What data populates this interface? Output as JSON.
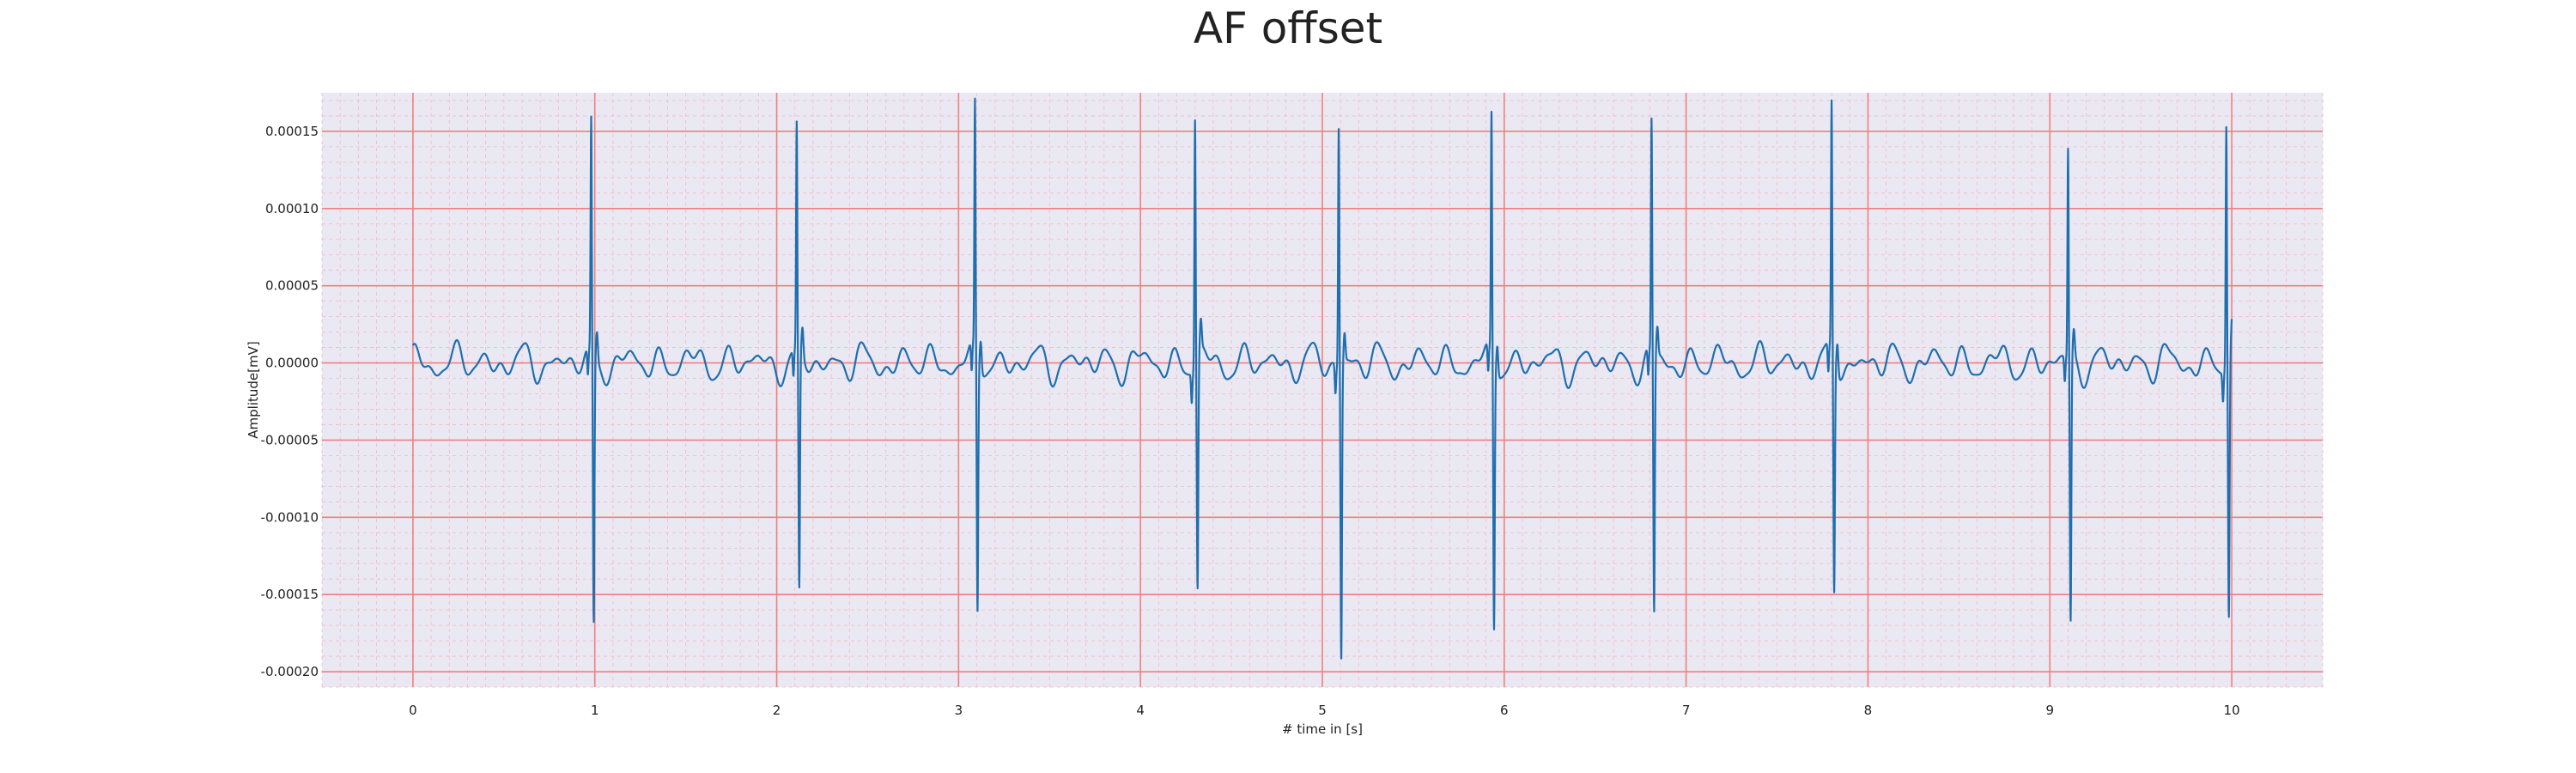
{
  "chart_data": {
    "type": "line",
    "title": "AF offset",
    "xlabel": "# time in [s]",
    "ylabel": "Amplitude[mV]",
    "xlim": [
      -0.5,
      10.5
    ],
    "ylim": [
      -0.00021,
      0.000175
    ],
    "x_ticks": [
      0,
      1,
      2,
      3,
      4,
      5,
      6,
      7,
      8,
      9,
      10
    ],
    "x_tick_labels": [
      "0",
      "1",
      "2",
      "3",
      "4",
      "5",
      "6",
      "7",
      "8",
      "9",
      "10"
    ],
    "y_ticks": [
      -0.0002,
      -0.00015,
      -0.0001,
      -5e-05,
      0.0,
      5e-05,
      0.0001,
      0.00015
    ],
    "y_tick_labels": [
      "-0.00020",
      "-0.00015",
      "-0.00010",
      "-0.00005",
      "0.00000",
      "0.00005",
      "0.00010",
      "0.00015"
    ],
    "grid": true,
    "colors": {
      "background": "#eae8f2",
      "major_grid": "#f08080",
      "minor_grid": "#f4b8c4",
      "line": "#1f6fae"
    },
    "series": [
      {
        "name": "",
        "beats": [
          {
            "t": 0.98,
            "peak": 0.00015,
            "trough": -0.000175
          },
          {
            "t": 2.11,
            "peak": 0.000145,
            "trough": -0.000157
          },
          {
            "t": 3.09,
            "peak": 0.00016,
            "trough": -0.000165
          },
          {
            "t": 4.3,
            "peak": 0.00016,
            "trough": -0.00015
          },
          {
            "t": 5.09,
            "peak": 0.000155,
            "trough": -0.00019
          },
          {
            "t": 5.93,
            "peak": 0.000155,
            "trough": -0.000173
          },
          {
            "t": 6.81,
            "peak": 0.00015,
            "trough": -0.000168
          },
          {
            "t": 7.8,
            "peak": 0.00016,
            "trough": -0.000152
          },
          {
            "t": 9.1,
            "peak": 0.000135,
            "trough": -0.000173
          },
          {
            "t": 9.97,
            "peak": 0.000155,
            "trough": -0.00017
          }
        ],
        "baseline": {
          "t_start": 0.0,
          "t_end": 10.0,
          "noise_amplitude": 1.5e-05
        }
      }
    ]
  }
}
